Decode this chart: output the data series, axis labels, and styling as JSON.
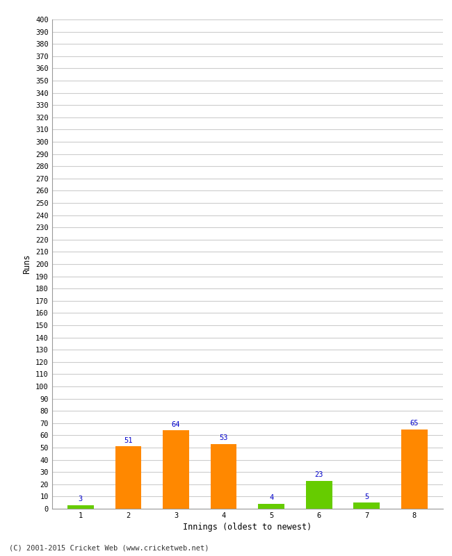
{
  "categories": [
    "1",
    "2",
    "3",
    "4",
    "5",
    "6",
    "7",
    "8"
  ],
  "values": [
    3,
    51,
    64,
    53,
    4,
    23,
    5,
    65
  ],
  "bar_colors": [
    "#66cc00",
    "#ff8800",
    "#ff8800",
    "#ff8800",
    "#66cc00",
    "#66cc00",
    "#66cc00",
    "#ff8800"
  ],
  "xlabel": "Innings (oldest to newest)",
  "ylabel": "Runs",
  "ylim": [
    0,
    400
  ],
  "ytick_step": 10,
  "label_color": "#0000cc",
  "label_fontsize": 7.5,
  "axis_label_fontsize": 8.5,
  "tick_fontsize": 7.5,
  "background_color": "#ffffff",
  "plot_bg_color": "#ffffff",
  "grid_color": "#cccccc",
  "footer": "(C) 2001-2015 Cricket Web (www.cricketweb.net)"
}
